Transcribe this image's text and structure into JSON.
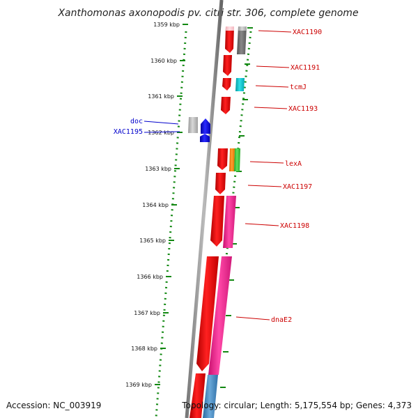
{
  "title": "Xanthomonas axonopodis pv. citri str. 306, complete genome",
  "accession": "Accession: NC_003919",
  "topology": "Topology: circular; Length: 5,175,554 bp; Genes: 4,373",
  "ticks": [
    "1359 kbp",
    "1360 kbp",
    "1361 kbp",
    "1362 kbp",
    "1363 kbp",
    "1364 kbp",
    "1365 kbp",
    "1366 kbp",
    "1367 kbp",
    "1368 kbp",
    "1369 kbp"
  ],
  "genes": [
    {
      "label": "XAC1190",
      "color": "#cc0000"
    },
    {
      "label": "XAC1191",
      "color": "#cc0000"
    },
    {
      "label": "tcmJ",
      "color": "#cc0000"
    },
    {
      "label": "XAC1193",
      "color": "#cc0000"
    },
    {
      "label": "doc",
      "color": "#0000cc"
    },
    {
      "label": "XAC1195",
      "color": "#0000cc"
    },
    {
      "label": "lexA",
      "color": "#cc0000"
    },
    {
      "label": "XAC1197",
      "color": "#cc0000"
    },
    {
      "label": "XAC1198",
      "color": "#cc0000"
    },
    {
      "label": "dnaE2",
      "color": "#cc0000"
    }
  ]
}
